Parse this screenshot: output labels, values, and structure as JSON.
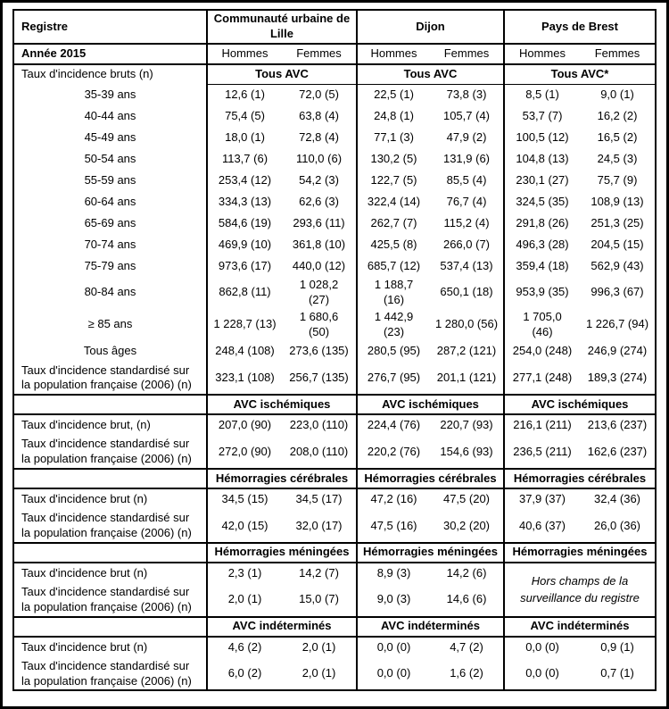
{
  "colors": {
    "border": "#000000",
    "background": "#ffffff",
    "text": "#000000"
  },
  "header": {
    "registre_label": "Registre",
    "regions": [
      "Communauté urbaine de Lille",
      "Dijon",
      "Pays de Brest"
    ],
    "year_label": "Année 2015",
    "sex_labels": [
      "Hommes",
      "Femmes",
      "Hommes",
      "Femmes",
      "Hommes",
      "Femmes"
    ]
  },
  "sections": [
    {
      "left_label": "Taux d'incidence bruts (n)",
      "headers": [
        "Tous AVC",
        "Tous AVC",
        "Tous AVC*"
      ],
      "rows": [
        {
          "label": "35-39 ans",
          "align": "center",
          "values": [
            "12,6 (1)",
            "72,0 (5)",
            "22,5 (1)",
            "73,8 (3)",
            "8,5 (1)",
            "9,0 (1)"
          ]
        },
        {
          "label": "40-44 ans",
          "align": "center",
          "values": [
            "75,4 (5)",
            "63,8 (4)",
            "24,8 (1)",
            "105,7 (4)",
            "53,7 (7)",
            "16,2 (2)"
          ]
        },
        {
          "label": "45-49 ans",
          "align": "center",
          "values": [
            "18,0 (1)",
            "72,8 (4)",
            "77,1 (3)",
            "47,9 (2)",
            "100,5 (12)",
            "16,5 (2)"
          ]
        },
        {
          "label": "50-54 ans",
          "align": "center",
          "values": [
            "113,7 (6)",
            "110,0 (6)",
            "130,2 (5)",
            "131,9 (6)",
            "104,8 (13)",
            "24,5 (3)"
          ]
        },
        {
          "label": "55-59 ans",
          "align": "center",
          "values": [
            "253,4 (12)",
            "54,2 (3)",
            "122,7 (5)",
            "85,5 (4)",
            "230,1 (27)",
            "75,7 (9)"
          ]
        },
        {
          "label": "60-64 ans",
          "align": "center",
          "values": [
            "334,3 (13)",
            "62,6 (3)",
            "322,4 (14)",
            "76,7 (4)",
            "324,5 (35)",
            "108,9 (13)"
          ]
        },
        {
          "label": "65-69 ans",
          "align": "center",
          "values": [
            "584,6 (19)",
            "293,6 (11)",
            "262,7 (7)",
            "115,2 (4)",
            "291,8 (26)",
            "251,3 (25)"
          ]
        },
        {
          "label": "70-74 ans",
          "align": "center",
          "values": [
            "469,9 (10)",
            "361,8 (10)",
            "425,5 (8)",
            "266,0 (7)",
            "496,3 (28)",
            "204,5 (15)"
          ]
        },
        {
          "label": "75-79 ans",
          "align": "center",
          "values": [
            "973,6 (17)",
            "440,0 (12)",
            "685,7 (12)",
            "537,4 (13)",
            "359,4 (18)",
            "562,9 (43)"
          ]
        },
        {
          "label": "80-84 ans",
          "align": "center",
          "values": [
            "862,8 (11)",
            "1 028,2\n(27)",
            "1 188,7\n(16)",
            "650,1 (18)",
            "953,9 (35)",
            "996,3 (67)"
          ]
        },
        {
          "label": "≥ 85 ans",
          "align": "center",
          "values": [
            "1 228,7 (13)",
            "1 680,6\n(50)",
            "1 442,9\n(23)",
            "1 280,0 (56)",
            "1 705,0\n(46)",
            "1 226,7 (94)"
          ]
        },
        {
          "label": "Tous âges",
          "align": "center",
          "values": [
            "248,4 (108)",
            "273,6 (135)",
            "280,5 (95)",
            "287,2 (121)",
            "254,0 (248)",
            "246,9 (274)"
          ]
        },
        {
          "label": "Taux d'incidence standardisé sur la population française (2006) (n)",
          "align": "left",
          "values": [
            "323,1 (108)",
            "256,7 (135)",
            "276,7 (95)",
            "201,1 (121)",
            "277,1 (248)",
            "189,3 (274)"
          ]
        }
      ]
    },
    {
      "left_label": "",
      "headers": [
        "AVC ischémiques",
        "AVC ischémiques",
        "AVC ischémiques"
      ],
      "rows": [
        {
          "label": "Taux d'incidence brut, (n)",
          "align": "left",
          "values": [
            "207,0 (90)",
            "223,0 (110)",
            "224,4 (76)",
            "220,7 (93)",
            "216,1 (211)",
            "213,6 (237)"
          ]
        },
        {
          "label": "Taux d'incidence standardisé sur la population française (2006) (n)",
          "align": "left",
          "values": [
            "272,0 (90)",
            "208,0 (110)",
            "220,2 (76)",
            "154,6 (93)",
            "236,5 (211)",
            "162,6 (237)"
          ]
        }
      ]
    },
    {
      "left_label": "",
      "headers": [
        "Hémorragies cérébrales",
        "Hémorragies cérébrales",
        "Hémorragies cérébrales"
      ],
      "rows": [
        {
          "label": "Taux d'incidence brut (n)",
          "align": "left",
          "values": [
            "34,5 (15)",
            "34,5 (17)",
            "47,2 (16)",
            "47,5 (20)",
            "37,9 (37)",
            "32,4 (36)"
          ]
        },
        {
          "label": "Taux d'incidence standardisé sur la population française (2006) (n)",
          "align": "left",
          "values": [
            "42,0 (15)",
            "32,0 (17)",
            "47,5 (16)",
            "30,2 (20)",
            "40,6 (37)",
            "26,0 (36)"
          ]
        }
      ]
    },
    {
      "left_label": "",
      "headers": [
        "Hémorragies méningées",
        "Hémorragies méningées",
        "Hémorragies méningées"
      ],
      "note": "Hors champs de la surveillance du registre",
      "rows": [
        {
          "label": "Taux d'incidence brut (n)",
          "align": "left",
          "values": [
            "2,3 (1)",
            "14,2 (7)",
            "8,9 (3)",
            "14,2 (6)"
          ]
        },
        {
          "label": "Taux d'incidence standardisé sur la population française (2006) (n)",
          "align": "left",
          "values": [
            "2,0 (1)",
            "15,0 (7)",
            "9,0 (3)",
            "14,6 (6)"
          ]
        }
      ]
    },
    {
      "left_label": "",
      "headers": [
        "AVC indéterminés",
        "AVC indéterminés",
        "AVC indéterminés"
      ],
      "rows": [
        {
          "label": "Taux d'incidence brut (n)",
          "align": "left",
          "values": [
            "4,6 (2)",
            "2,0 (1)",
            "0,0 (0)",
            "4,7 (2)",
            "0,0 (0)",
            "0,9 (1)"
          ]
        },
        {
          "label": "Taux d'incidence standardisé sur la population française (2006) (n)",
          "align": "left",
          "values": [
            "6,0 (2)",
            "2,0 (1)",
            "0,0 (0)",
            "1,6 (2)",
            "0,0 (0)",
            "0,7 (1)"
          ]
        }
      ]
    }
  ]
}
